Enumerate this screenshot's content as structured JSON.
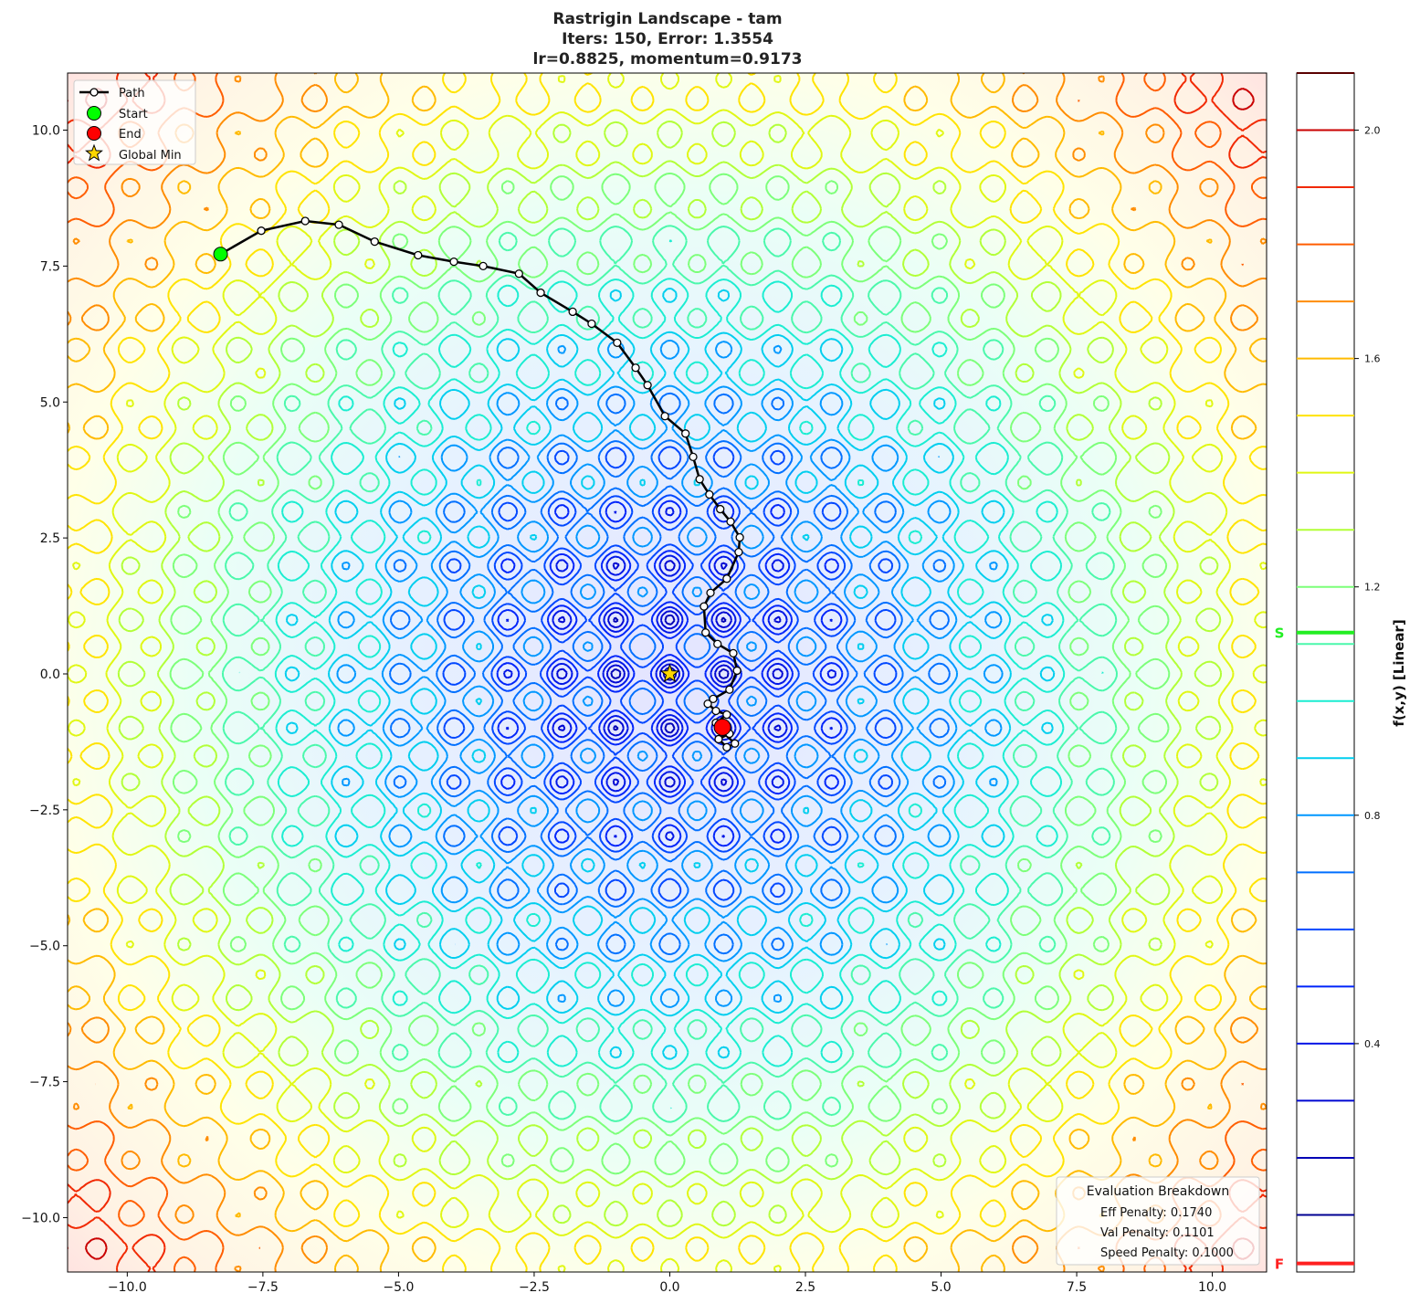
{
  "chart_data": {
    "type": "contour",
    "title_lines": [
      "Rastrigin Landscape - tam",
      "Iters: 150, Error: 1.3554",
      "lr=0.8825, momentum=0.9173"
    ],
    "function": "rastrigin",
    "xlim": [
      -11.1,
      11
    ],
    "ylim": [
      -11,
      11.05
    ],
    "x_ticks": [
      -10,
      -7.5,
      -5,
      -2.5,
      0,
      2.5,
      5,
      7.5,
      10
    ],
    "x_tick_labels": [
      "−10.0",
      "−7.5",
      "−5.0",
      "−2.5",
      "0.0",
      "2.5",
      "5.0",
      "7.5",
      "10.0"
    ],
    "y_ticks": [
      10,
      7.5,
      5,
      2.5,
      0,
      -2.5,
      -5,
      -7.5,
      -10
    ],
    "y_tick_labels": [
      "10.0",
      "7.5",
      "5.0",
      "2.5",
      "0.0",
      "−2.5",
      "−5.0",
      "−7.5",
      "−10.0"
    ],
    "path": {
      "name": "Path",
      "x": [
        -8.28,
        -7.53,
        -6.72,
        -6.1,
        -5.44,
        -4.64,
        -3.98,
        -3.44,
        -2.78,
        -2.38,
        -1.79,
        -1.44,
        -0.97,
        -0.63,
        -0.41,
        -0.09,
        0.29,
        0.43,
        0.55,
        0.73,
        0.93,
        1.12,
        1.29,
        1.27,
        1.05,
        0.75,
        0.63,
        0.66,
        0.88,
        1.17,
        1.24,
        1.1,
        0.8,
        0.7,
        0.85,
        1.05,
        0.85,
        1.1,
        0.9,
        1.05,
        1.2,
        0.95,
        0.97
      ],
      "y": [
        7.72,
        8.15,
        8.33,
        8.26,
        7.95,
        7.7,
        7.58,
        7.5,
        7.36,
        7.01,
        6.66,
        6.44,
        6.09,
        5.63,
        5.31,
        4.74,
        4.42,
        3.99,
        3.58,
        3.3,
        3.03,
        2.8,
        2.51,
        2.24,
        1.75,
        1.49,
        1.24,
        0.76,
        0.55,
        0.38,
        0.06,
        -0.29,
        -0.46,
        -0.55,
        -0.68,
        -0.75,
        -0.9,
        -1.1,
        -1.2,
        -1.35,
        -1.28,
        -1.05,
        -0.98
      ]
    },
    "start": {
      "name": "Start",
      "x": -8.28,
      "y": 7.72,
      "color": "#00ff00"
    },
    "end": {
      "name": "End",
      "x": 0.97,
      "y": -0.98,
      "color": "#ff0000"
    },
    "global_min": {
      "name": "Global Min",
      "x": 0,
      "y": 0,
      "color": "#ffd700"
    },
    "colorbar": {
      "label": "f(x,y) [Linear]",
      "range": [
        0,
        2.1
      ],
      "levels": [
        0.1,
        0.2,
        0.3,
        0.4,
        0.5,
        0.6,
        0.7,
        0.8,
        0.9,
        1.0,
        1.1,
        1.2,
        1.3,
        1.4,
        1.5,
        1.6,
        1.7,
        1.8,
        1.9,
        2.0,
        2.1
      ],
      "ticks": [
        0.4,
        0.8,
        1.2,
        1.6,
        2.0
      ],
      "tick_labels": [
        "0.4",
        "0.8",
        "1.2",
        "1.6",
        "2.0"
      ],
      "markers": [
        {
          "label": "S",
          "value": 1.12,
          "color": "#22ee22"
        },
        {
          "label": "F",
          "value": 0.015,
          "color": "#ff2020"
        }
      ]
    },
    "legend": {
      "placement": "upper-left",
      "entries": [
        "Path",
        "Start",
        "End",
        "Global Min"
      ]
    },
    "evaluation_box": {
      "placement": "lower-right",
      "title": "Evaluation Breakdown",
      "lines": [
        "Eff Penalty: 0.1740",
        "Val Penalty: 0.1101",
        "Speed Penalty: 0.1000"
      ]
    }
  }
}
